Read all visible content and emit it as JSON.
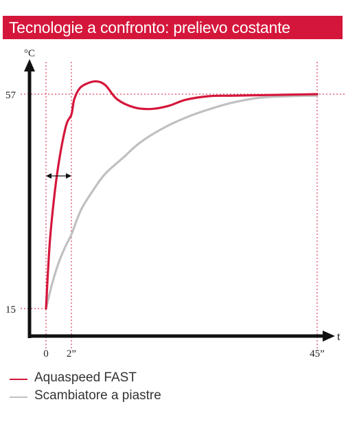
{
  "header": {
    "title": "Tecnologie a confronto: prelievo costante"
  },
  "chart_data": {
    "type": "line",
    "title": "Tecnologie a confronto: prelievo costante",
    "xlabel": "t",
    "ylabel": "°C",
    "x_ticks": [
      {
        "value": 0,
        "label": "0"
      },
      {
        "value": 2,
        "label": "2”"
      },
      {
        "value": 45,
        "label": "45”"
      }
    ],
    "y_ticks": [
      {
        "value": 15,
        "label": "15"
      },
      {
        "value": 57,
        "label": "57"
      }
    ],
    "reference_lines": {
      "y": 57,
      "x": [
        0,
        2,
        45
      ]
    },
    "annotation": {
      "type": "double-arrow",
      "from_x": 0,
      "to_x": 2
    },
    "series": [
      {
        "name": "Aquaspeed FAST",
        "color": "#d5163b",
        "points": [
          [
            0,
            15
          ],
          [
            0.3,
            28
          ],
          [
            0.7,
            38
          ],
          [
            1.1,
            45
          ],
          [
            1.6,
            51
          ],
          [
            2,
            53
          ],
          [
            2.5,
            56
          ],
          [
            3.5,
            58.2
          ],
          [
            5,
            59.2
          ],
          [
            6.5,
            59.5
          ],
          [
            8,
            58.7
          ],
          [
            10,
            56
          ],
          [
            13,
            54.4
          ],
          [
            16,
            54.1
          ],
          [
            19,
            54.7
          ],
          [
            22,
            55.9
          ],
          [
            26,
            56.6
          ],
          [
            30,
            56.7
          ],
          [
            35,
            56.8
          ],
          [
            40,
            56.9
          ],
          [
            45,
            57
          ]
        ]
      },
      {
        "name": "Scambiatore a piastre",
        "color": "#c0c0c0",
        "points": [
          [
            0,
            15
          ],
          [
            0.5,
            20
          ],
          [
            1,
            24
          ],
          [
            1.5,
            27
          ],
          [
            2,
            29.5
          ],
          [
            3,
            32.5
          ],
          [
            4,
            35
          ],
          [
            6,
            38.5
          ],
          [
            8,
            41.5
          ],
          [
            11,
            44.5
          ],
          [
            14,
            47.5
          ],
          [
            18,
            50.3
          ],
          [
            22,
            52.4
          ],
          [
            26,
            54
          ],
          [
            30,
            55.3
          ],
          [
            35,
            56.3
          ],
          [
            40,
            56.6
          ],
          [
            45,
            56.7
          ]
        ]
      }
    ]
  }
}
